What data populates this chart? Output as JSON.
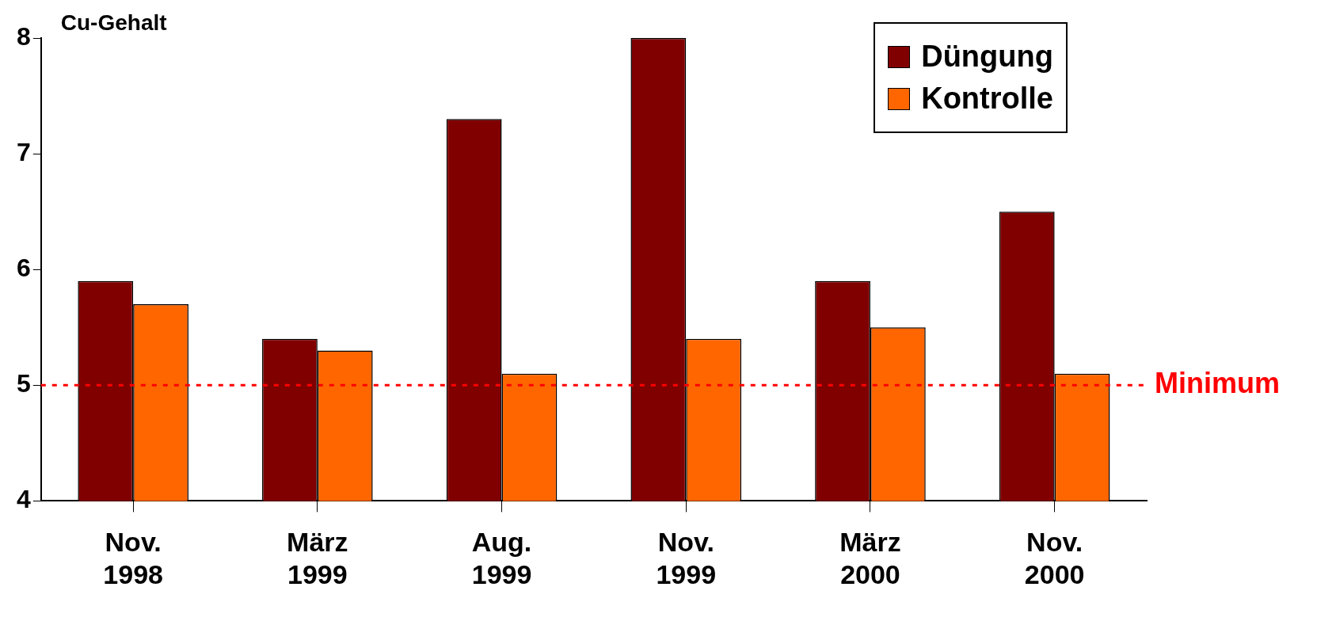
{
  "chart_data": {
    "type": "bar",
    "ylabel": "Cu-Gehalt",
    "categories": [
      "Nov. 1998",
      "März 1999",
      "Aug. 1999",
      "Nov. 1999",
      "März 2000",
      "Nov. 2000"
    ],
    "series": [
      {
        "name": "Düngung",
        "color": "#800000",
        "values": [
          5.9,
          5.4,
          7.3,
          8.0,
          5.9,
          6.5
        ]
      },
      {
        "name": "Kontrolle",
        "color": "#ff6600",
        "values": [
          5.7,
          5.3,
          5.1,
          5.4,
          5.5,
          5.1
        ]
      }
    ],
    "ylim": [
      4,
      8
    ],
    "yticks": [
      4,
      5,
      6,
      7,
      8
    ],
    "grid": false,
    "legend": "top right",
    "ref_lines": [
      {
        "axis": "y",
        "value": 5,
        "label": "Minimum",
        "color": "#ff0000",
        "line_style": "dotted"
      }
    ]
  }
}
